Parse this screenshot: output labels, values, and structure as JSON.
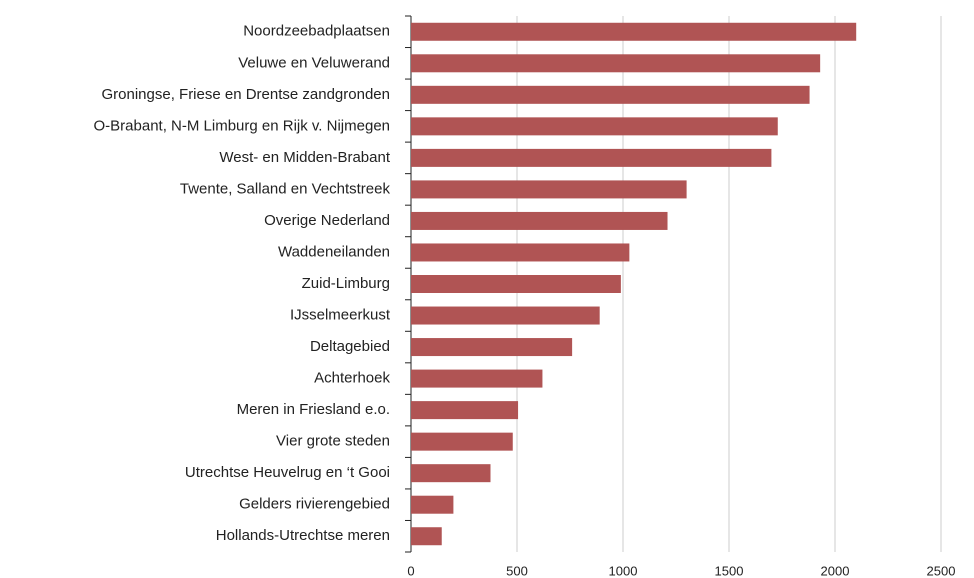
{
  "chart_data": {
    "type": "barh",
    "categories": [
      "Noordzeebadplaatsen",
      "Veluwe en Veluwerand",
      "Groningse, Friese en Drentse zandgronden",
      "O-Brabant, N-M Limburg en Rijk v. Nijmegen",
      "West- en Midden-Brabant",
      "Twente, Salland en Vechtstreek",
      "Overige Nederland",
      "Waddeneilanden",
      "Zuid-Limburg",
      "IJsselmeerkust",
      "Deltagebied",
      "Achterhoek",
      "Meren in Friesland e.o.",
      "Vier grote steden",
      "Utrechtse Heuvelrug en ‘t Gooi",
      "Gelders rivierengebied",
      "Hollands-Utrechtse meren"
    ],
    "values": [
      2100,
      1930,
      1880,
      1730,
      1700,
      1300,
      1210,
      1030,
      990,
      890,
      760,
      620,
      505,
      480,
      375,
      200,
      145
    ],
    "color": "#b05454",
    "xlim": [
      0,
      2500
    ],
    "xticks": [
      0,
      500,
      1000,
      1500,
      2000,
      2500
    ],
    "grid": true
  }
}
